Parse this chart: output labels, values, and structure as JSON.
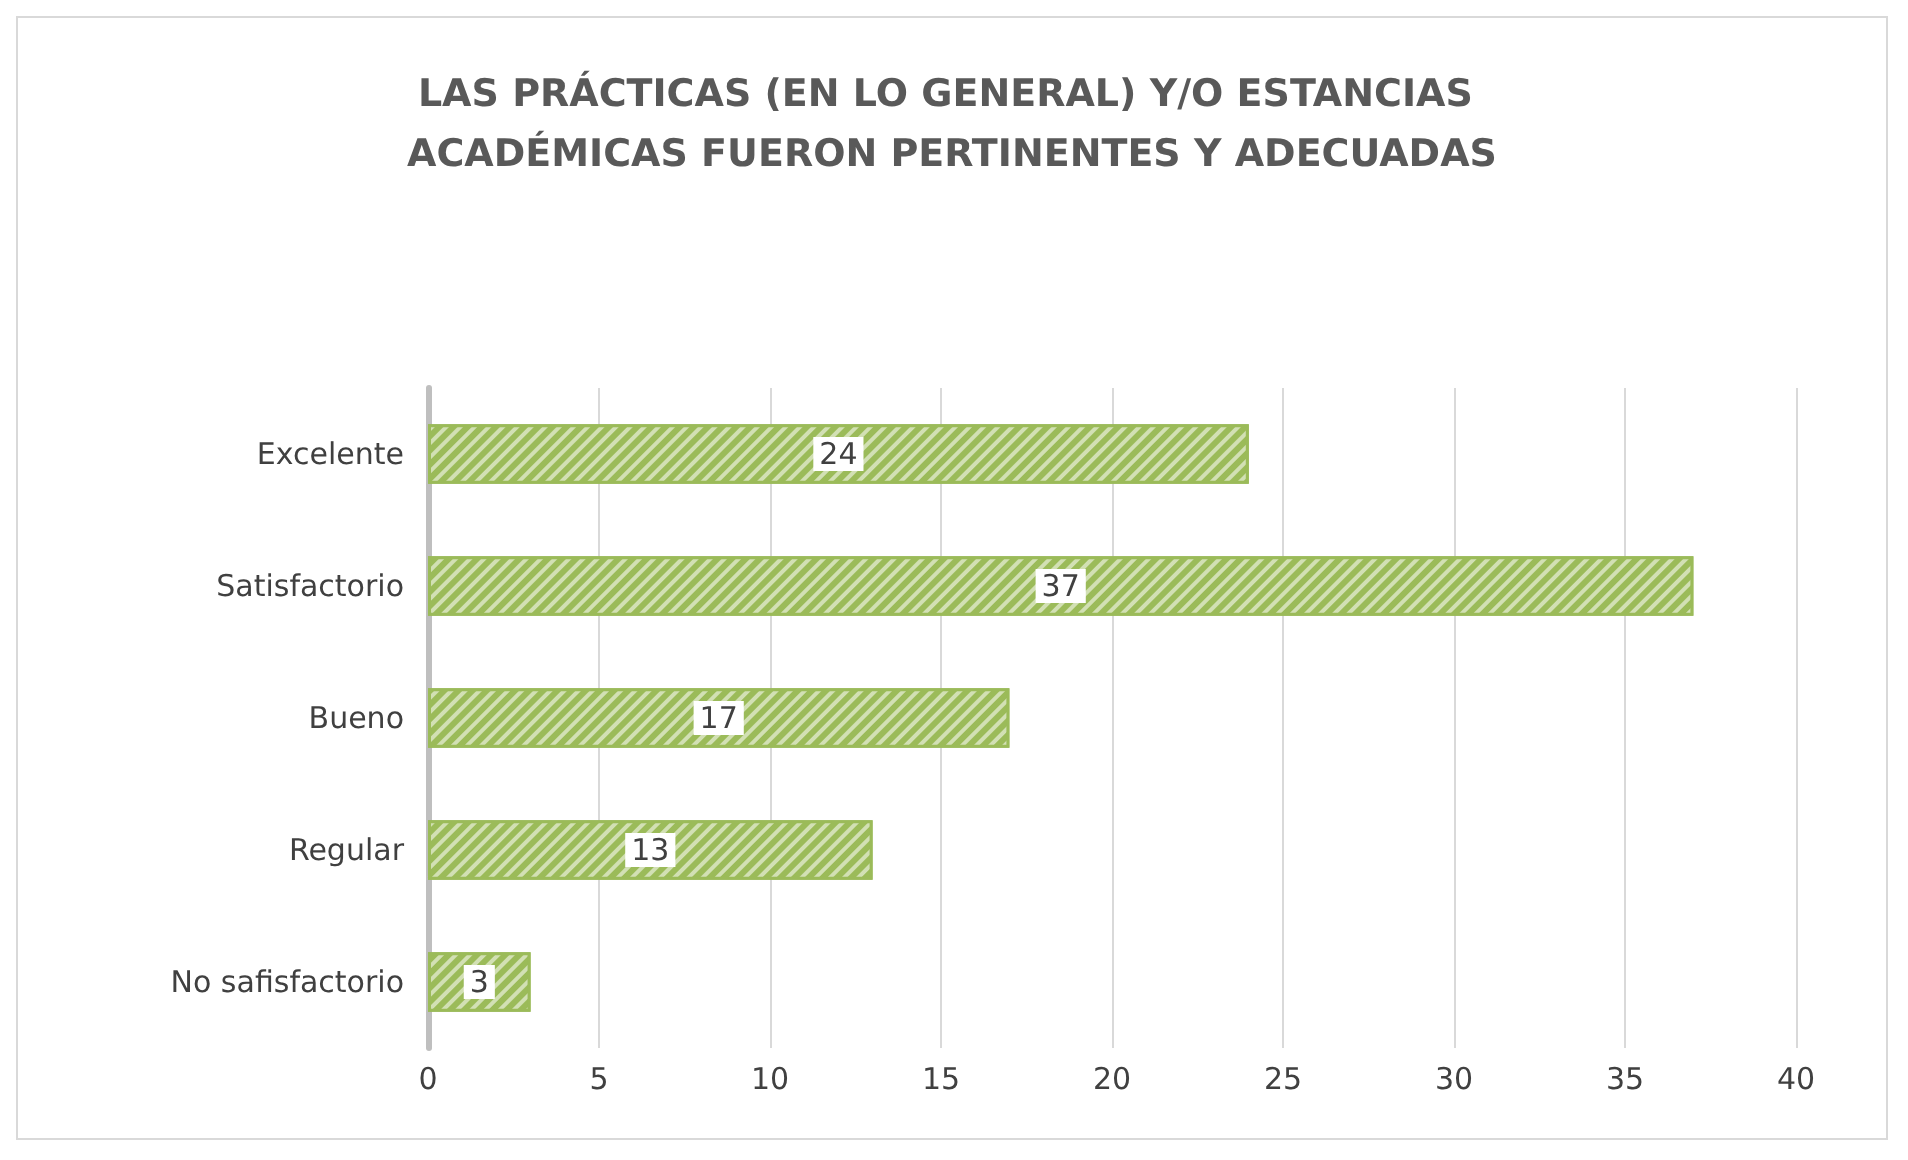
{
  "chart_data": {
    "type": "bar",
    "orientation": "horizontal",
    "title": "LAS PRÁCTICAS (EN LO GENERAL) Y/O ESTANCIAS ACADÉMICAS FUERON PERTINENTES Y ADECUADAS",
    "categories": [
      "Excelente",
      "Satisfactorio",
      "Bueno",
      "Regular",
      "No safisfactorio"
    ],
    "values": [
      24,
      37,
      17,
      13,
      3
    ],
    "color": "#9bbb59",
    "xlim": [
      0,
      40
    ],
    "xticks": [
      0,
      5,
      10,
      15,
      20,
      25,
      30,
      35,
      40
    ],
    "grid": "x",
    "data_labels": true
  }
}
